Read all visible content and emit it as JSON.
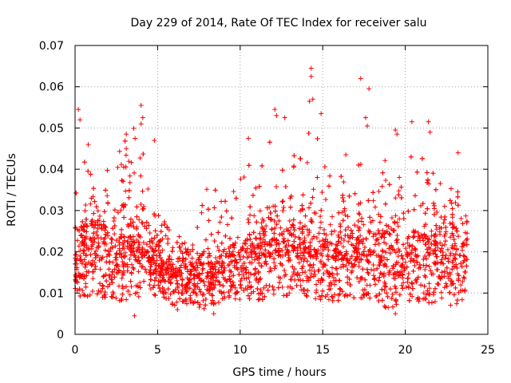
{
  "chart_data": {
    "type": "scatter",
    "title": "Day 229 of 2014, Rate Of TEC Index for receiver salu",
    "xlabel": "GPS time / hours",
    "ylabel": "ROTI / TECUs",
    "xlim": [
      0,
      25
    ],
    "ylim": [
      0,
      0.07
    ],
    "x_ticks": [
      0,
      5,
      10,
      15,
      20,
      25
    ],
    "x_tick_labels": [
      "0",
      "5",
      "10",
      "15",
      "20",
      "25"
    ],
    "y_ticks": [
      0,
      0.01,
      0.02,
      0.03,
      0.04,
      0.05,
      0.06,
      0.07
    ],
    "y_tick_labels": [
      "0",
      "0.01",
      "0.02",
      "0.03",
      "0.04",
      "0.05",
      "0.06",
      "0.07"
    ],
    "grid": true,
    "marker": "+",
    "color": "#ff0000",
    "time_range_hours": [
      0,
      23.75
    ],
    "series": [
      {
        "name": "ROTI",
        "envelope": {
          "x": [
            0,
            1,
            2,
            3,
            4,
            5,
            6,
            7,
            8,
            9,
            10,
            11,
            12,
            13,
            14,
            15,
            16,
            17,
            18,
            19,
            20,
            21,
            22,
            23,
            23.75
          ],
          "y_median": [
            0.017,
            0.02,
            0.018,
            0.018,
            0.02,
            0.016,
            0.014,
            0.013,
            0.014,
            0.015,
            0.016,
            0.018,
            0.02,
            0.019,
            0.02,
            0.019,
            0.018,
            0.018,
            0.019,
            0.018,
            0.016,
            0.018,
            0.019,
            0.019,
            0.018
          ],
          "y_low": [
            0.009,
            0.009,
            0.008,
            0.008,
            0.009,
            0.009,
            0.007,
            0.007,
            0.006,
            0.008,
            0.008,
            0.008,
            0.009,
            0.009,
            0.009,
            0.008,
            0.008,
            0.008,
            0.008,
            0.006,
            0.008,
            0.008,
            0.007,
            0.007,
            0.009
          ],
          "y_high": [
            0.045,
            0.043,
            0.042,
            0.048,
            0.052,
            0.03,
            0.025,
            0.022,
            0.036,
            0.035,
            0.04,
            0.042,
            0.048,
            0.05,
            0.056,
            0.045,
            0.04,
            0.04,
            0.05,
            0.045,
            0.04,
            0.05,
            0.038,
            0.036,
            0.03
          ]
        },
        "highlights": [
          {
            "x": 0.2,
            "y": 0.0545
          },
          {
            "x": 0.3,
            "y": 0.052
          },
          {
            "x": 0.8,
            "y": 0.046
          },
          {
            "x": 3.1,
            "y": 0.0485
          },
          {
            "x": 3.1,
            "y": 0.045
          },
          {
            "x": 4.0,
            "y": 0.0555
          },
          {
            "x": 4.0,
            "y": 0.051
          },
          {
            "x": 4.1,
            "y": 0.0525
          },
          {
            "x": 4.8,
            "y": 0.047
          },
          {
            "x": 3.6,
            "y": 0.0045
          },
          {
            "x": 10.5,
            "y": 0.0475
          },
          {
            "x": 12.1,
            "y": 0.0545
          },
          {
            "x": 12.2,
            "y": 0.053
          },
          {
            "x": 12.7,
            "y": 0.0525
          },
          {
            "x": 14.2,
            "y": 0.0565
          },
          {
            "x": 14.3,
            "y": 0.0645
          },
          {
            "x": 14.3,
            "y": 0.0625
          },
          {
            "x": 14.4,
            "y": 0.057
          },
          {
            "x": 14.9,
            "y": 0.0535
          },
          {
            "x": 16.4,
            "y": 0.0435
          },
          {
            "x": 17.3,
            "y": 0.062
          },
          {
            "x": 17.8,
            "y": 0.0595
          },
          {
            "x": 17.6,
            "y": 0.0525
          },
          {
            "x": 17.7,
            "y": 0.0505
          },
          {
            "x": 19.4,
            "y": 0.0495
          },
          {
            "x": 19.5,
            "y": 0.0485
          },
          {
            "x": 20.4,
            "y": 0.0515
          },
          {
            "x": 21.4,
            "y": 0.0515
          },
          {
            "x": 21.5,
            "y": 0.049
          },
          {
            "x": 23.2,
            "y": 0.044
          },
          {
            "x": 19.4,
            "y": 0.005
          },
          {
            "x": 8.4,
            "y": 0.005
          },
          {
            "x": 6.2,
            "y": 0.006
          }
        ]
      }
    ]
  }
}
